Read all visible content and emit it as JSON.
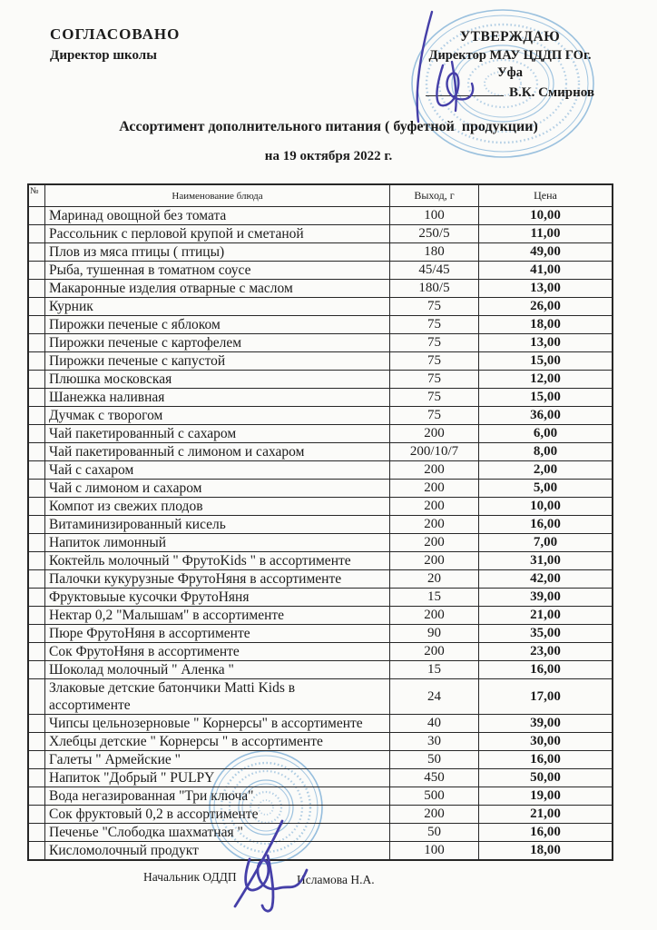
{
  "approval": {
    "left": {
      "line1": "СОГЛАСОВАНО",
      "line2": "Директор школы"
    },
    "right": {
      "line1": "УТВЕРЖДАЮ",
      "line2": "Директор МАУ ЦДДП ГОг.",
      "line3": "Уфа",
      "line4": "В.К. Смирнов"
    }
  },
  "title": "Ассортимент дополнительного питания ( буфетной  продукции)",
  "date_line": "на 19 октября 2022 г.",
  "table": {
    "headers": {
      "num": "№",
      "name": "Наименование блюда",
      "output": "Выход, г",
      "price": "Цена"
    },
    "rows": [
      {
        "name": "Маринад овощной без томата",
        "output": "100",
        "price": "10,00"
      },
      {
        "name": "Рассольник с перловой крупой и сметаной",
        "output": "250/5",
        "price": "11,00"
      },
      {
        "name": "Плов из мяса птицы ( птицы)",
        "output": "180",
        "price": "49,00"
      },
      {
        "name": "Рыба, тушенная в томатном соусе",
        "output": "45/45",
        "price": "41,00"
      },
      {
        "name": "Макаронные изделия отварные с маслом",
        "output": "180/5",
        "price": "13,00"
      },
      {
        "name": "Курник",
        "output": "75",
        "price": "26,00"
      },
      {
        "name": "Пирожки печеные с яблоком",
        "output": "75",
        "price": "18,00"
      },
      {
        "name": "Пирожки печеные с картофелем",
        "output": "75",
        "price": "13,00"
      },
      {
        "name": "Пирожки печеные с капустой",
        "output": "75",
        "price": "15,00"
      },
      {
        "name": "Плюшка московская",
        "output": "75",
        "price": "12,00"
      },
      {
        "name": "Шанежка наливная",
        "output": "75",
        "price": "15,00"
      },
      {
        "name": "Дучмак с творогом",
        "output": "75",
        "price": "36,00"
      },
      {
        "name": "Чай пакетированный с сахаром",
        "output": "200",
        "price": "6,00"
      },
      {
        "name": "Чай пакетированный с лимоном и сахаром",
        "output": "200/10/7",
        "price": "8,00"
      },
      {
        "name": "Чай с сахаром",
        "output": "200",
        "price": "2,00"
      },
      {
        "name": "Чай с лимоном и сахаром",
        "output": "200",
        "price": "5,00"
      },
      {
        "name": "Компот из свежих плодов",
        "output": "200",
        "price": "10,00"
      },
      {
        "name": "Витаминизированный кисель",
        "output": "200",
        "price": "16,00"
      },
      {
        "name": "Напиток лимонный",
        "output": "200",
        "price": "7,00"
      },
      {
        "name": "Коктейль молочный \" ФрутоKids \" в ассортименте",
        "output": "200",
        "price": "31,00"
      },
      {
        "name": "Палочки кукурузные ФрутоНяня в ассортименте",
        "output": "20",
        "price": "42,00"
      },
      {
        "name": "Фруктовыые кусочки ФрутоНяня",
        "output": "15",
        "price": "39,00"
      },
      {
        "name": "Нектар 0,2 \"Малышам\" в ассортименте",
        "output": "200",
        "price": "21,00"
      },
      {
        "name": "Пюре ФрутоНяня в ассортименте",
        "output": "90",
        "price": "35,00"
      },
      {
        "name": "Сок ФрутоНяня в ассортименте",
        "output": "200",
        "price": "23,00"
      },
      {
        "name": "Шоколад молочный \" Аленка \"",
        "output": "15",
        "price": "16,00"
      },
      {
        "name": "Злаковые детские батончики Matti Kids в\nассортименте",
        "output": "24",
        "price": "17,00"
      },
      {
        "name": "Чипсы цельнозерновые \" Корнерсы\" в ассортименте",
        "output": "40",
        "price": "39,00"
      },
      {
        "name": "Хлебцы детские \" Корнерсы \" в ассортименте",
        "output": "30",
        "price": "30,00"
      },
      {
        "name": "Галеты \" Армейские \"",
        "output": "50",
        "price": "16,00"
      },
      {
        "name": "Напиток \"Добрый \" PULPY",
        "output": "450",
        "price": "50,00"
      },
      {
        "name": "Вода негазированная \"Три ключа\"",
        "output": "500",
        "price": "19,00"
      },
      {
        "name": "Сок фруктовый 0,2 в ассортименте",
        "output": "200",
        "price": "21,00"
      },
      {
        "name": "Печенье  \"Слободка шахматная \"",
        "output": "50",
        "price": "16,00"
      },
      {
        "name": "Кисломолочный продукт",
        "output": "100",
        "price": "18,00"
      }
    ]
  },
  "footer": {
    "position": "Начальник ОДДП",
    "name": "Исламова Н.А."
  },
  "colors": {
    "stamp": "#8ab6d9",
    "signature": "#453fa8",
    "text": "#1c1c1c",
    "page_background": "#fbfbf9"
  }
}
